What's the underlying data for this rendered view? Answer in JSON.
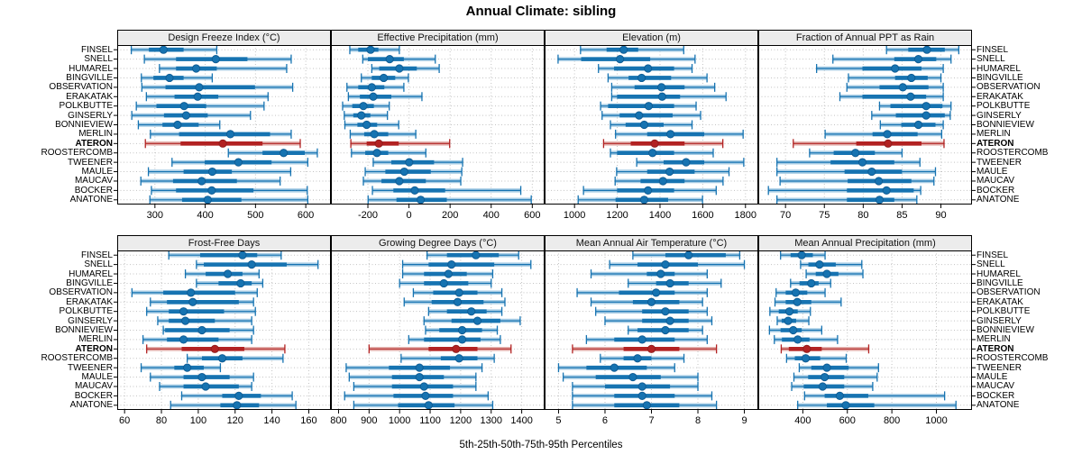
{
  "chart_data": {
    "type": "dotplot",
    "title": "Annual Climate: sibling",
    "caption": "5th-25th-50th-75th-95th Percentiles",
    "percentiles": [
      5,
      25,
      50,
      75,
      95
    ],
    "layout": {
      "rows": 2,
      "cols": 4,
      "grid": "dotted",
      "site_labels_both_sides": true,
      "legend": "none"
    },
    "colors": {
      "series": "#1673b1",
      "series_band": "#a8cde5",
      "series_dot_edge": "#0f5c94",
      "highlight": "#b22222",
      "highlight_band": "#e3b1ad",
      "highlight_dot_edge": "#8f1d1d",
      "strip_bg": "#ececec",
      "grid": "#c3c3c3",
      "border": "#000000"
    },
    "sites": [
      "FINSEL",
      "SNELL",
      "HUMAREL",
      "BINGVILLE",
      "OBSERVATION",
      "ERAKATAK",
      "POLKBUTTE",
      "GINSERLY",
      "BONNIEVIEW",
      "MERLIN",
      "ATERON",
      "ROOSTERCOMB",
      "TWEENER",
      "MAULE",
      "MAUCAV",
      "BOCKER",
      "ANATONE"
    ],
    "highlight_site": "ATERON",
    "panels": [
      {
        "title": "Design Freeze Index (°C)",
        "xlim": [
          225,
          650
        ],
        "ticks": [
          300,
          400,
          500,
          600
        ],
        "values": [
          [
            253,
            288,
            317,
            357,
            423
          ],
          [
            279,
            342,
            421,
            484,
            571
          ],
          [
            309,
            342,
            382,
            423,
            562
          ],
          [
            273,
            297,
            329,
            357,
            414
          ],
          [
            274,
            321,
            388,
            499,
            574
          ],
          [
            283,
            339,
            385,
            426,
            525
          ],
          [
            263,
            303,
            358,
            402,
            517
          ],
          [
            254,
            318,
            362,
            405,
            490
          ],
          [
            267,
            315,
            345,
            387,
            429
          ],
          [
            291,
            348,
            450,
            529,
            571
          ],
          [
            281,
            351,
            435,
            514,
            589
          ],
          [
            446,
            514,
            556,
            598,
            623
          ],
          [
            334,
            399,
            466,
            532,
            604
          ],
          [
            287,
            357,
            414,
            453,
            570
          ],
          [
            272,
            336,
            393,
            463,
            549
          ],
          [
            293,
            342,
            413,
            496,
            603
          ],
          [
            290,
            354,
            405,
            472,
            604
          ]
        ]
      },
      {
        "title": "Effective Precipitation (mm)",
        "xlim": [
          -380,
          660
        ],
        "ticks": [
          -200,
          0,
          200,
          400,
          600
        ],
        "values": [
          [
            -288,
            -247,
            -187,
            -149,
            -47
          ],
          [
            -225,
            -200,
            -94,
            -25,
            128
          ],
          [
            -181,
            -145,
            -47,
            38,
            147
          ],
          [
            -232,
            -181,
            -123,
            -67,
            -3
          ],
          [
            -302,
            -247,
            -181,
            -120,
            -25
          ],
          [
            -295,
            -239,
            -174,
            -86,
            63
          ],
          [
            -323,
            -276,
            -222,
            -171,
            -96
          ],
          [
            -315,
            -271,
            -232,
            -188,
            -105
          ],
          [
            -312,
            -251,
            -206,
            -155,
            -50
          ],
          [
            -286,
            -218,
            -169,
            -101,
            33
          ],
          [
            -283,
            -206,
            -147,
            -50,
            198
          ],
          [
            -280,
            -213,
            -156,
            -101,
            82
          ],
          [
            -174,
            -86,
            1,
            122,
            261
          ],
          [
            -213,
            -115,
            -23,
            106,
            257
          ],
          [
            -222,
            -134,
            -47,
            82,
            252
          ],
          [
            -178,
            -76,
            28,
            176,
            544
          ],
          [
            -199,
            -61,
            57,
            184,
            595
          ]
        ]
      },
      {
        "title": "Elevation (m)",
        "xlim": [
          860,
          1860
        ],
        "ticks": [
          1000,
          1200,
          1400,
          1600,
          1800
        ],
        "values": [
          [
            1028,
            1150,
            1230,
            1298,
            1511
          ],
          [
            923,
            1031,
            1213,
            1354,
            1564
          ],
          [
            1112,
            1185,
            1344,
            1466,
            1550
          ],
          [
            1157,
            1253,
            1314,
            1452,
            1620
          ],
          [
            1174,
            1281,
            1407,
            1515,
            1656
          ],
          [
            1174,
            1199,
            1410,
            1494,
            1709
          ],
          [
            1122,
            1157,
            1347,
            1466,
            1569
          ],
          [
            1129,
            1211,
            1302,
            1459,
            1590
          ],
          [
            1168,
            1239,
            1326,
            1417,
            1550
          ],
          [
            1192,
            1340,
            1449,
            1607,
            1789
          ],
          [
            1136,
            1263,
            1375,
            1515,
            1694
          ],
          [
            1168,
            1199,
            1365,
            1466,
            1649
          ],
          [
            1291,
            1417,
            1522,
            1607,
            1792
          ],
          [
            1197,
            1340,
            1445,
            1562,
            1723
          ],
          [
            1190,
            1309,
            1414,
            1515,
            1695
          ],
          [
            1042,
            1199,
            1344,
            1466,
            1663
          ],
          [
            1017,
            1192,
            1326,
            1438,
            1599
          ]
        ]
      },
      {
        "title": "Fraction of Annual PPT as Rain",
        "xlim": [
          66.5,
          94
        ],
        "ticks": [
          70,
          75,
          80,
          85,
          90
        ],
        "values": [
          [
            83.0,
            85.8,
            88.2,
            90.5,
            92.3
          ],
          [
            76.1,
            84.0,
            87.1,
            89.4,
            91.3
          ],
          [
            74.0,
            79.9,
            84.1,
            87.5,
            90.3
          ],
          [
            78.1,
            84.1,
            86.2,
            88.3,
            90.0
          ],
          [
            77.9,
            82.1,
            85.1,
            88.4,
            90.3
          ],
          [
            77.0,
            79.9,
            86.1,
            88.1,
            90.3
          ],
          [
            82.1,
            83.5,
            88.1,
            90.2,
            91.3
          ],
          [
            81.1,
            84.2,
            88.1,
            90.5,
            91.2
          ],
          [
            82.2,
            84.9,
            87.1,
            89.3,
            90.3
          ],
          [
            75.1,
            81.2,
            83.1,
            87.0,
            90.1
          ],
          [
            71.0,
            79.1,
            83.2,
            87.5,
            90.4
          ],
          [
            73.1,
            76.2,
            79.0,
            81.5,
            85.0
          ],
          [
            68.9,
            75.8,
            79.9,
            84.0,
            87.3
          ],
          [
            68.9,
            77.6,
            81.1,
            85.0,
            89.3
          ],
          [
            69.3,
            78.0,
            82.0,
            86.2,
            89.1
          ],
          [
            67.8,
            77.9,
            83.0,
            86.5,
            87.4
          ],
          [
            68.9,
            77.9,
            82.1,
            84.0,
            86.9
          ]
        ]
      },
      {
        "title": "Frost-Free Days",
        "xlim": [
          56,
          172
        ],
        "ticks": [
          60,
          80,
          100,
          120,
          140,
          160
        ],
        "values": [
          [
            84,
            101,
            124,
            132,
            145
          ],
          [
            99,
            103,
            129,
            148,
            165
          ],
          [
            93,
            104,
            116,
            124,
            133
          ],
          [
            99,
            111,
            123,
            129,
            135
          ],
          [
            64,
            81,
            96,
            120,
            132
          ],
          [
            74,
            83,
            97,
            122,
            130
          ],
          [
            72,
            84,
            92,
            114,
            131
          ],
          [
            78,
            84,
            93,
            109,
            129
          ],
          [
            81,
            82,
            102,
            117,
            130
          ],
          [
            70,
            83,
            92,
            111,
            129
          ],
          [
            72,
            91,
            109,
            125,
            147
          ],
          [
            94,
            102,
            113,
            124,
            146
          ],
          [
            69,
            87,
            94,
            103,
            112
          ],
          [
            74,
            92,
            102,
            117,
            130
          ],
          [
            79,
            92,
            104,
            122,
            129
          ],
          [
            91,
            113,
            122,
            134,
            151
          ],
          [
            85,
            112,
            121,
            133,
            153
          ]
        ]
      },
      {
        "title": "Growing Degree Days (°C)",
        "xlim": [
          775,
          1475
        ],
        "ticks": [
          800,
          900,
          1000,
          1100,
          1200,
          1300,
          1400
        ],
        "values": [
          [
            1090,
            1155,
            1250,
            1325,
            1390
          ],
          [
            1010,
            1095,
            1170,
            1310,
            1430
          ],
          [
            1010,
            1080,
            1160,
            1220,
            1305
          ],
          [
            1000,
            1080,
            1145,
            1225,
            1300
          ],
          [
            1045,
            1110,
            1195,
            1255,
            1335
          ],
          [
            1015,
            1105,
            1190,
            1275,
            1345
          ],
          [
            1095,
            1155,
            1235,
            1285,
            1335
          ],
          [
            1080,
            1170,
            1255,
            1330,
            1395
          ],
          [
            1085,
            1130,
            1205,
            1270,
            1320
          ],
          [
            1030,
            1080,
            1205,
            1265,
            1330
          ],
          [
            900,
            1095,
            1185,
            1255,
            1365
          ],
          [
            1005,
            1135,
            1195,
            1255,
            1310
          ],
          [
            825,
            965,
            1065,
            1165,
            1270
          ],
          [
            835,
            975,
            1065,
            1145,
            1250
          ],
          [
            850,
            975,
            1080,
            1175,
            1250
          ],
          [
            820,
            980,
            1085,
            1175,
            1290
          ],
          [
            850,
            995,
            1095,
            1180,
            1305
          ]
        ]
      },
      {
        "title": "Mean Annual Air Temperature (°C)",
        "xlim": [
          4.7,
          9.3
        ],
        "ticks": [
          5,
          6,
          7,
          8,
          9
        ],
        "values": [
          [
            6.6,
            7.3,
            7.8,
            8.6,
            8.9
          ],
          [
            6.1,
            6.7,
            7.3,
            8.0,
            9.0
          ],
          [
            5.7,
            6.9,
            7.2,
            7.5,
            8.2
          ],
          [
            6.5,
            7.1,
            7.4,
            7.8,
            8.5
          ],
          [
            5.4,
            6.3,
            7.1,
            7.5,
            8.2
          ],
          [
            5.7,
            6.6,
            7.0,
            7.6,
            8.1
          ],
          [
            5.8,
            6.8,
            7.3,
            7.8,
            8.2
          ],
          [
            6.0,
            6.8,
            7.4,
            7.8,
            8.3
          ],
          [
            6.5,
            6.7,
            7.3,
            7.8,
            8.1
          ],
          [
            5.6,
            6.2,
            6.8,
            7.5,
            8.2
          ],
          [
            5.3,
            6.4,
            7.0,
            7.6,
            8.4
          ],
          [
            5.9,
            6.4,
            6.7,
            7.0,
            7.7
          ],
          [
            5.0,
            5.6,
            6.2,
            6.9,
            7.5
          ],
          [
            5.1,
            5.8,
            6.6,
            7.2,
            8.0
          ],
          [
            5.3,
            6.0,
            6.8,
            7.4,
            8.0
          ],
          [
            5.3,
            6.2,
            6.8,
            7.5,
            8.3
          ],
          [
            5.3,
            6.2,
            6.9,
            7.6,
            8.4
          ]
        ]
      },
      {
        "title": "Mean Annual Precipitation (mm)",
        "xlim": [
          200,
          1160
        ],
        "ticks": [
          400,
          600,
          800,
          1000
        ],
        "values": [
          [
            300,
            345,
            395,
            445,
            500
          ],
          [
            390,
            425,
            475,
            548,
            665
          ],
          [
            415,
            458,
            508,
            560,
            670
          ],
          [
            345,
            385,
            438,
            471,
            525
          ],
          [
            280,
            323,
            368,
            420,
            500
          ],
          [
            275,
            323,
            375,
            438,
            572
          ],
          [
            252,
            292,
            340,
            377,
            434
          ],
          [
            285,
            305,
            334,
            370,
            427
          ],
          [
            250,
            300,
            357,
            395,
            485
          ],
          [
            272,
            306,
            377,
            430,
            556
          ],
          [
            303,
            337,
            418,
            485,
            696
          ],
          [
            327,
            364,
            413,
            478,
            595
          ],
          [
            384,
            438,
            508,
            606,
            740
          ],
          [
            360,
            424,
            498,
            586,
            734
          ],
          [
            350,
            404,
            489,
            586,
            714
          ],
          [
            408,
            498,
            566,
            694,
            1037
          ],
          [
            377,
            508,
            593,
            721,
            1088
          ]
        ]
      }
    ]
  }
}
